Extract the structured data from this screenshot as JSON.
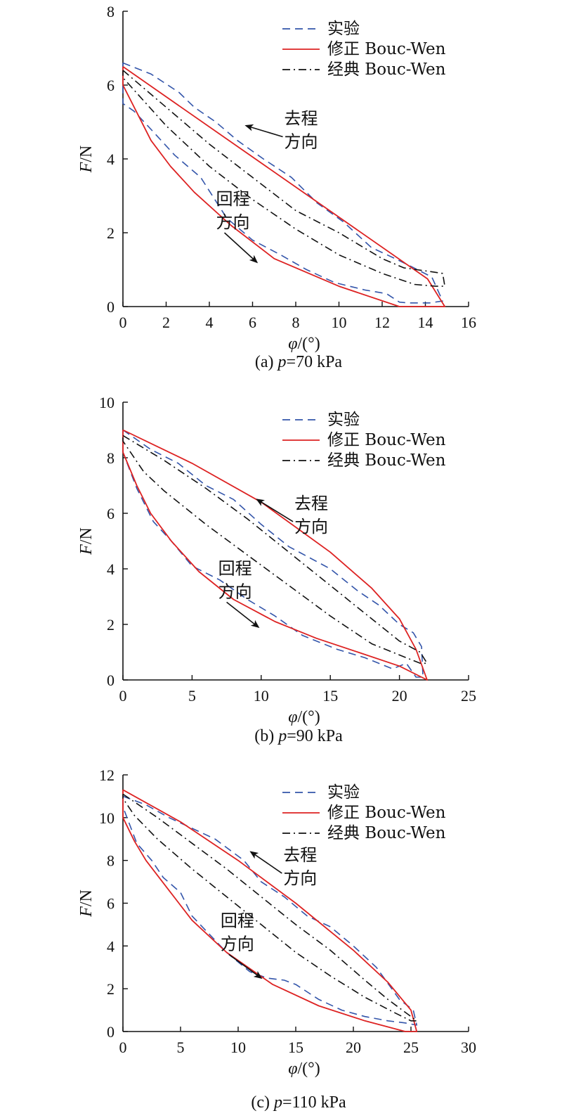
{
  "legend_labels": [
    "实验",
    "修正 Bouc-Wen",
    "经典 Bouc-Wen"
  ],
  "colors": {
    "exp": "#3355aa",
    "mod": "#dd2222",
    "cls": "#111111"
  },
  "chart_data": [
    {
      "type": "line",
      "caption_prefix": "(a) ",
      "caption_var": "p",
      "caption_rest": "=70 kPa",
      "xlabel_var": "φ",
      "xlabel_unit": "/(°)",
      "ylabel_var": "F",
      "ylabel_unit": "/N",
      "xlim": [
        0,
        16
      ],
      "ylim": [
        0,
        8
      ],
      "xticks": [
        0,
        2,
        4,
        6,
        8,
        10,
        12,
        14,
        16
      ],
      "yticks": [
        0,
        2,
        4,
        6,
        8
      ],
      "annotations": [
        {
          "lines": [
            "去程",
            "方向"
          ],
          "arrow_from": [
            7.4,
            4.6
          ],
          "arrow_to": [
            5.7,
            4.9
          ]
        },
        {
          "lines": [
            "回程",
            "方向"
          ],
          "arrow_from": [
            4.7,
            2.0
          ],
          "arrow_to": [
            6.2,
            1.2
          ]
        }
      ],
      "series": [
        {
          "name": "实验",
          "style": "dash",
          "color": "#3355aa",
          "x": [
            0,
            1.3,
            2.6,
            3.3,
            4.3,
            5.3,
            6.5,
            7.8,
            9,
            10.2,
            11.5,
            12.6,
            13.3,
            14.3,
            14.8,
            14.2,
            13.2,
            12.8,
            12.2,
            11.2,
            9.8,
            8.5,
            7.3,
            6,
            4.8,
            3.6,
            2.4,
            1.3,
            0.5,
            0,
            0
          ],
          "y": [
            6.6,
            6.3,
            5.8,
            5.4,
            5.0,
            4.5,
            4.0,
            3.5,
            2.8,
            2.3,
            1.6,
            1.3,
            1.1,
            0.8,
            0.15,
            0.1,
            0.1,
            0.12,
            0.35,
            0.45,
            0.65,
            1.0,
            1.4,
            1.8,
            2.4,
            3.5,
            4.1,
            4.8,
            5.3,
            5.5,
            6.6
          ]
        },
        {
          "name": "修正 Bouc-Wen",
          "style": "solid",
          "color": "#dd2222",
          "x": [
            0,
            14.1,
            14.9,
            12.8,
            10,
            7,
            5,
            3.3,
            2.2,
            1.3,
            0,
            0
          ],
          "y": [
            6.5,
            0.75,
            0.0,
            0.0,
            0.55,
            1.3,
            2.2,
            3.1,
            3.8,
            4.5,
            6.0,
            6.5
          ]
        },
        {
          "name": "经典 Bouc-Wen",
          "style": "dashdot",
          "color": "#111111",
          "x": [
            0,
            2,
            4,
            6,
            8,
            10,
            12,
            13,
            14.2,
            14.8,
            14.9,
            14.5,
            13.5,
            12,
            10,
            8,
            6,
            4,
            2,
            0,
            0
          ],
          "y": [
            6.4,
            5.4,
            4.4,
            3.5,
            2.6,
            2.0,
            1.3,
            1.05,
            0.95,
            0.9,
            0.55,
            0.55,
            0.6,
            0.9,
            1.4,
            2.1,
            2.9,
            3.8,
            4.9,
            6.2,
            6.4
          ]
        }
      ]
    },
    {
      "type": "line",
      "caption_prefix": "(b) ",
      "caption_var": "p",
      "caption_rest": "=90 kPa",
      "xlabel_var": "φ",
      "xlabel_unit": "/(°)",
      "ylabel_var": "F",
      "ylabel_unit": "/N",
      "xlim": [
        0,
        25
      ],
      "ylim": [
        0,
        10
      ],
      "xticks": [
        0,
        5,
        10,
        15,
        20,
        25
      ],
      "yticks": [
        0,
        2,
        4,
        6,
        8,
        10
      ],
      "annotations": [
        {
          "lines": [
            "去程",
            "方向"
          ],
          "arrow_from": [
            12.3,
            5.7
          ],
          "arrow_to": [
            9.7,
            6.5
          ]
        },
        {
          "lines": [
            "回程",
            "方向"
          ],
          "arrow_from": [
            7.5,
            2.8
          ],
          "arrow_to": [
            9.8,
            1.9
          ]
        }
      ],
      "series": [
        {
          "name": "实验",
          "style": "dash",
          "color": "#3355aa",
          "x": [
            0,
            2,
            4,
            6,
            8,
            10,
            12,
            13.5,
            15,
            17,
            18.5,
            20,
            21,
            21.6,
            21.7,
            21.2,
            20.5,
            19.5,
            17.5,
            15.5,
            13,
            11,
            9,
            7,
            5,
            3.5,
            2.2,
            1,
            0,
            0
          ],
          "y": [
            9.0,
            8.3,
            7.8,
            7.0,
            6.5,
            5.6,
            4.8,
            4.4,
            4.0,
            3.2,
            2.7,
            2.0,
            1.7,
            1.2,
            0.1,
            0.1,
            0.6,
            0.4,
            0.8,
            1.1,
            1.6,
            2.3,
            2.9,
            3.6,
            4.1,
            5.0,
            5.7,
            6.9,
            8.2,
            9.0
          ]
        },
        {
          "name": "修正 Bouc-Wen",
          "style": "solid",
          "color": "#dd2222",
          "x": [
            0,
            5,
            10,
            15,
            18,
            20,
            21.2,
            22,
            20,
            17,
            14,
            11,
            8,
            5.5,
            3.5,
            2,
            1,
            0,
            0
          ],
          "y": [
            9.0,
            7.8,
            6.4,
            4.6,
            3.3,
            2.2,
            1.1,
            0,
            0.5,
            1.0,
            1.5,
            2.1,
            2.9,
            3.9,
            5.0,
            6.0,
            7.0,
            8.2,
            9.0
          ]
        },
        {
          "name": "经典 Bouc-Wen",
          "style": "dashdot",
          "color": "#111111",
          "x": [
            0,
            3,
            6,
            9,
            12,
            15,
            18,
            20,
            21.5,
            22,
            21.5,
            20,
            18,
            15,
            12,
            9,
            6,
            3,
            1.5,
            0,
            0
          ],
          "y": [
            8.8,
            7.9,
            6.9,
            5.8,
            4.6,
            3.4,
            2.2,
            1.4,
            1.0,
            0.6,
            0.6,
            0.9,
            1.3,
            2.3,
            3.4,
            4.5,
            5.6,
            6.8,
            7.5,
            8.6,
            8.8
          ]
        }
      ]
    },
    {
      "type": "line",
      "caption_prefix": "(c) ",
      "caption_var": "p",
      "caption_rest": "=110 kPa",
      "xlabel_var": "φ",
      "xlabel_unit": "/(°)",
      "ylabel_var": "F",
      "ylabel_unit": "/N",
      "xlim": [
        0,
        30
      ],
      "ylim": [
        0,
        12
      ],
      "xticks": [
        0,
        5,
        10,
        15,
        20,
        25,
        30
      ],
      "yticks": [
        0,
        2,
        4,
        6,
        8,
        10,
        12
      ],
      "annotations": [
        {
          "lines": [
            "去程",
            "方向"
          ],
          "arrow_from": [
            13.8,
            7.4
          ],
          "arrow_to": [
            11.1,
            8.4
          ]
        },
        {
          "lines": [
            "回程",
            "方向"
          ],
          "arrow_from": [
            9.2,
            3.6
          ],
          "arrow_to": [
            12.0,
            2.5
          ]
        }
      ],
      "series": [
        {
          "name": "实验",
          "style": "dash",
          "color": "#3355aa",
          "x": [
            0,
            2,
            4,
            6,
            8,
            10.5,
            12,
            14,
            16,
            18,
            20,
            22,
            24,
            25.2,
            25.5,
            24.5,
            23,
            21,
            19,
            17,
            15,
            14,
            12.5,
            11,
            9,
            6,
            5,
            3.5,
            2.5,
            1.2,
            0,
            0
          ],
          "y": [
            11.0,
            10.6,
            10.0,
            9.5,
            9.0,
            8.0,
            7.0,
            6.3,
            5.4,
            4.9,
            4.0,
            3.0,
            1.5,
            1.0,
            0.3,
            0.4,
            0.5,
            0.7,
            1.0,
            1.5,
            2.2,
            2.4,
            2.5,
            2.8,
            3.7,
            5.4,
            6.5,
            7.2,
            8.0,
            8.8,
            10.5,
            11.0
          ]
        },
        {
          "name": "修正 Bouc-Wen",
          "style": "solid",
          "color": "#dd2222",
          "x": [
            0,
            5,
            10,
            15,
            20,
            23,
            25,
            25.5,
            24.5,
            21,
            17,
            13,
            9,
            6,
            4,
            2,
            1,
            0,
            0
          ],
          "y": [
            11.3,
            9.8,
            8.0,
            6.0,
            3.8,
            2.3,
            1.0,
            0.0,
            0.0,
            0.5,
            1.2,
            2.2,
            3.7,
            5.2,
            6.6,
            8.0,
            8.9,
            10.0,
            11.3
          ]
        },
        {
          "name": "经典 Bouc-Wen",
          "style": "dashdot",
          "color": "#111111",
          "x": [
            0,
            3,
            6,
            9,
            12,
            15,
            18,
            21,
            23,
            24.5,
            25.5,
            25,
            23.5,
            21,
            18,
            15,
            12,
            9,
            6,
            3,
            1,
            0,
            0
          ],
          "y": [
            11.1,
            10.0,
            8.8,
            7.6,
            6.3,
            5.0,
            3.8,
            2.4,
            1.5,
            0.9,
            0.5,
            0.5,
            0.9,
            1.6,
            2.6,
            3.7,
            5.0,
            6.3,
            7.6,
            9.0,
            10.1,
            10.9,
            11.1
          ]
        }
      ]
    }
  ]
}
